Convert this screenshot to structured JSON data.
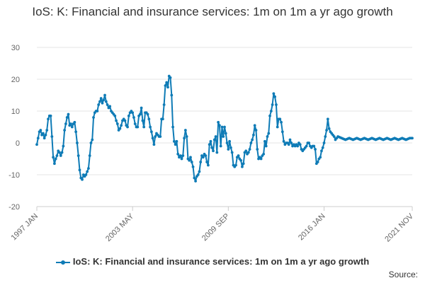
{
  "chart_data": {
    "type": "line",
    "title": "IoS: K: Financial and insurance services: 1m on 1m a yr ago growth",
    "xlabel": "",
    "ylabel": "",
    "ylim": [
      -20,
      30
    ],
    "yticks": [
      -20,
      -10,
      0,
      10,
      20,
      30
    ],
    "x_start": "1997 JAN",
    "x_end": "2021 NOV",
    "x_tick_labels": [
      {
        "label": "1997 JAN",
        "index": 0
      },
      {
        "label": "2003 MAY",
        "index": 76
      },
      {
        "label": "2009 SEP",
        "index": 152
      },
      {
        "label": "2016 JAN",
        "index": 228
      },
      {
        "label": "2021 NOV",
        "index": 298
      }
    ],
    "grid": true,
    "legend_position": "bottom",
    "color": "#0e7bb6",
    "series": [
      {
        "name": "IoS: K: Financial and insurance services: 1m on 1m a yr ago growth",
        "anchors": [
          [
            0,
            -0.5
          ],
          [
            2,
            3.5
          ],
          [
            3,
            4
          ],
          [
            4,
            2.5
          ],
          [
            5,
            3
          ],
          [
            6,
            1.5
          ],
          [
            7,
            2.5
          ],
          [
            8,
            4
          ],
          [
            9,
            7.5
          ],
          [
            10,
            8.5
          ],
          [
            11,
            8.5
          ],
          [
            12,
            2
          ],
          [
            13,
            -4.5
          ],
          [
            14,
            -6.5
          ],
          [
            15,
            -5
          ],
          [
            16,
            -4
          ],
          [
            17,
            -2.5
          ],
          [
            18,
            -3
          ],
          [
            19,
            -4
          ],
          [
            20,
            -3
          ],
          [
            21,
            -1
          ],
          [
            22,
            4
          ],
          [
            24,
            8
          ],
          [
            25,
            9
          ],
          [
            26,
            5.5
          ],
          [
            27,
            6
          ],
          [
            28,
            5
          ],
          [
            29,
            6
          ],
          [
            30,
            6.5
          ],
          [
            31,
            3.5
          ],
          [
            32,
            0
          ],
          [
            33,
            -4
          ],
          [
            34,
            -8.5
          ],
          [
            35,
            -11
          ],
          [
            36,
            -11.5
          ],
          [
            37,
            -10
          ],
          [
            38,
            -10.5
          ],
          [
            39,
            -10
          ],
          [
            40,
            -9
          ],
          [
            41,
            -8
          ],
          [
            42,
            -4
          ],
          [
            43,
            0
          ],
          [
            44,
            1
          ],
          [
            45,
            8
          ],
          [
            46,
            9.5
          ],
          [
            47,
            10
          ],
          [
            48,
            10
          ],
          [
            49,
            12
          ],
          [
            50,
            13
          ],
          [
            51,
            14
          ],
          [
            52,
            12.5
          ],
          [
            53,
            13.5
          ],
          [
            54,
            15
          ],
          [
            55,
            13
          ],
          [
            56,
            12
          ],
          [
            57,
            11
          ],
          [
            58,
            11.5
          ],
          [
            59,
            10
          ],
          [
            60,
            9.5
          ],
          [
            61,
            9
          ],
          [
            62,
            8.5
          ],
          [
            63,
            7
          ],
          [
            64,
            6
          ],
          [
            65,
            4
          ],
          [
            66,
            4.5
          ],
          [
            67,
            5.5
          ],
          [
            68,
            7
          ],
          [
            69,
            7.5
          ],
          [
            70,
            7
          ],
          [
            71,
            5.5
          ],
          [
            72,
            5
          ],
          [
            73,
            8.5
          ],
          [
            74,
            9.5
          ],
          [
            75,
            10
          ],
          [
            76,
            9.5
          ],
          [
            77,
            8
          ],
          [
            78,
            6
          ],
          [
            79,
            5
          ],
          [
            80,
            5
          ],
          [
            81,
            8.5
          ],
          [
            82,
            9
          ],
          [
            83,
            11
          ],
          [
            84,
            7
          ],
          [
            85,
            5
          ],
          [
            86,
            9.5
          ],
          [
            87,
            9.5
          ],
          [
            88,
            9
          ],
          [
            89,
            7.5
          ],
          [
            90,
            5
          ],
          [
            91,
            3.5
          ],
          [
            92,
            1.5
          ],
          [
            93,
            -0.5
          ],
          [
            94,
            2
          ],
          [
            95,
            3
          ],
          [
            96,
            2.5
          ],
          [
            97,
            2
          ],
          [
            98,
            2
          ],
          [
            99,
            7.5
          ],
          [
            100,
            7.5
          ],
          [
            101,
            12
          ],
          [
            102,
            18
          ],
          [
            103,
            19
          ],
          [
            104,
            17.5
          ],
          [
            105,
            21
          ],
          [
            106,
            20.5
          ],
          [
            107,
            15
          ],
          [
            108,
            5
          ],
          [
            109,
            0.5
          ],
          [
            110,
            -0.5
          ],
          [
            111,
            0.5
          ],
          [
            112,
            -3.5
          ],
          [
            113,
            -4.5
          ],
          [
            114,
            -4
          ],
          [
            115,
            -5
          ],
          [
            116,
            -4
          ],
          [
            117,
            1.5
          ],
          [
            118,
            4
          ],
          [
            119,
            2
          ],
          [
            120,
            -5
          ],
          [
            121,
            -5.5
          ],
          [
            122,
            -4.5
          ],
          [
            123,
            -6
          ],
          [
            124,
            -7.5
          ],
          [
            125,
            -11
          ],
          [
            126,
            -12
          ],
          [
            127,
            -10.5
          ],
          [
            128,
            -10
          ],
          [
            129,
            -9
          ],
          [
            130,
            -6
          ],
          [
            131,
            -4
          ],
          [
            132,
            -4.5
          ],
          [
            133,
            -3.5
          ],
          [
            134,
            -4
          ],
          [
            135,
            -6
          ],
          [
            136,
            -7
          ],
          [
            137,
            -0.5
          ],
          [
            138,
            0.5
          ],
          [
            139,
            -1.5
          ],
          [
            140,
            -2.5
          ],
          [
            141,
            1
          ],
          [
            142,
            2
          ],
          [
            143,
            -3
          ],
          [
            144,
            6.5
          ],
          [
            145,
            5.5
          ],
          [
            146,
            -1
          ],
          [
            147,
            5
          ],
          [
            148,
            2
          ],
          [
            149,
            5
          ],
          [
            150,
            3
          ],
          [
            151,
            0
          ],
          [
            152,
            -2
          ],
          [
            153,
            0.5
          ],
          [
            154,
            -1.5
          ],
          [
            155,
            -3
          ],
          [
            156,
            -7
          ],
          [
            157,
            -7.5
          ],
          [
            158,
            -7
          ],
          [
            159,
            -4.5
          ],
          [
            160,
            -4
          ],
          [
            161,
            -5
          ],
          [
            162,
            -5.5
          ],
          [
            163,
            -7.5
          ],
          [
            164,
            -6.5
          ],
          [
            165,
            -3
          ],
          [
            166,
            -2.5
          ],
          [
            167,
            -3.5
          ],
          [
            168,
            -3
          ],
          [
            169,
            -2
          ],
          [
            170,
            0
          ],
          [
            171,
            1
          ],
          [
            172,
            2.5
          ],
          [
            173,
            5.5
          ],
          [
            174,
            4
          ],
          [
            175,
            -2
          ],
          [
            176,
            -5
          ],
          [
            177,
            -4.5
          ],
          [
            178,
            -5
          ],
          [
            179,
            -4
          ],
          [
            180,
            -3.5
          ],
          [
            181,
            0.5
          ],
          [
            182,
            -1
          ],
          [
            183,
            2
          ],
          [
            184,
            3
          ],
          [
            185,
            8.5
          ],
          [
            186,
            10
          ],
          [
            187,
            12
          ],
          [
            188,
            15.5
          ],
          [
            189,
            14.5
          ],
          [
            190,
            12
          ],
          [
            191,
            5
          ],
          [
            192,
            7.5
          ],
          [
            193,
            7.5
          ],
          [
            194,
            6.5
          ],
          [
            195,
            3.5
          ],
          [
            196,
            0.5
          ],
          [
            197,
            -0.5
          ],
          [
            198,
            0
          ],
          [
            199,
            0
          ],
          [
            200,
            -0.5
          ],
          [
            201,
            1
          ],
          [
            202,
            0
          ],
          [
            203,
            -1
          ],
          [
            204,
            -0.5
          ],
          [
            205,
            -1
          ],
          [
            206,
            -0.5
          ],
          [
            207,
            -1
          ],
          [
            208,
            0
          ],
          [
            209,
            -0.5
          ],
          [
            210,
            -2
          ],
          [
            211,
            -2.5
          ],
          [
            212,
            -2
          ],
          [
            213,
            -1.5
          ],
          [
            214,
            -1
          ],
          [
            215,
            0
          ],
          [
            216,
            0
          ],
          [
            217,
            -1
          ],
          [
            218,
            -1.5
          ],
          [
            219,
            -1
          ],
          [
            220,
            -1
          ],
          [
            221,
            -2
          ],
          [
            222,
            -6.5
          ],
          [
            223,
            -6
          ],
          [
            224,
            -5
          ],
          [
            225,
            -4.5
          ],
          [
            226,
            -2.5
          ],
          [
            227,
            -1.5
          ],
          [
            228,
            0
          ],
          [
            229,
            2
          ],
          [
            230,
            4
          ],
          [
            231,
            7.5
          ],
          [
            232,
            4.5
          ],
          [
            233,
            3.5
          ],
          [
            234,
            3
          ],
          [
            235,
            2.5
          ],
          [
            236,
            2
          ],
          [
            237,
            1
          ],
          [
            238,
            1.5
          ],
          [
            239,
            2
          ],
          [
            242,
            1.5
          ],
          [
            245,
            1
          ],
          [
            248,
            1.5
          ],
          [
            251,
            1
          ],
          [
            254,
            1.5
          ],
          [
            257,
            1
          ],
          [
            260,
            1.5
          ],
          [
            263,
            1
          ],
          [
            266,
            1.5
          ],
          [
            269,
            1
          ],
          [
            272,
            1.5
          ],
          [
            275,
            1
          ],
          [
            278,
            1.5
          ],
          [
            281,
            1
          ],
          [
            284,
            1.5
          ],
          [
            287,
            1
          ],
          [
            290,
            1.5
          ],
          [
            293,
            1
          ],
          [
            296,
            1.5
          ],
          [
            298,
            1.5
          ]
        ]
      }
    ]
  },
  "legend": {
    "label": "IoS: K: Financial and insurance services: 1m on 1m a yr ago growth"
  },
  "footer": {
    "source": "Source:"
  }
}
